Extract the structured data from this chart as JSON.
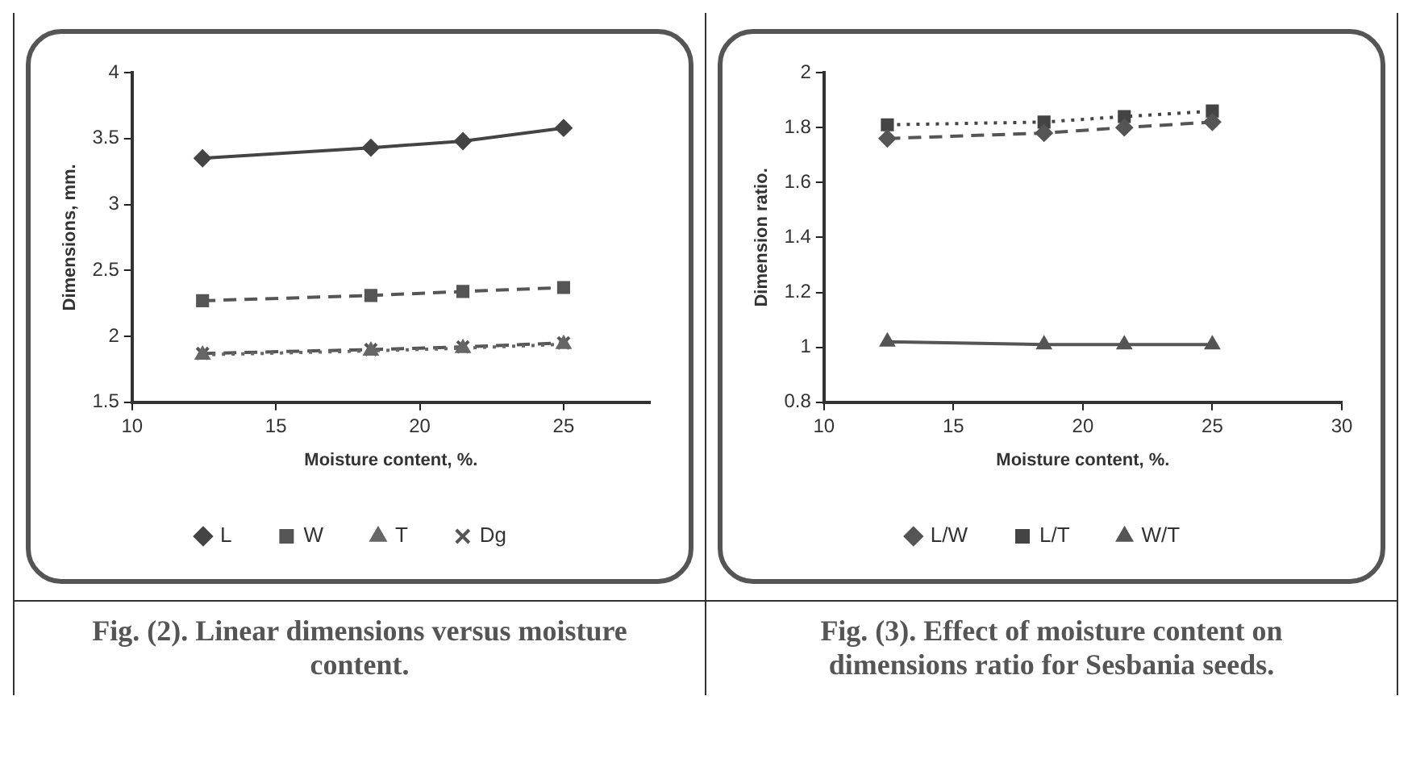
{
  "chart_data": [
    {
      "type": "line",
      "title": "Fig. (2). Linear dimensions versus moisture content.",
      "xlabel": "Moisture content, %.",
      "ylabel": "Dimensions, mm.",
      "x": [
        12.45,
        18.3,
        21.5,
        25
      ],
      "xlim": [
        10,
        28
      ],
      "xticks": [
        10,
        15,
        20,
        25
      ],
      "ylim": [
        1.5,
        4
      ],
      "yticks": [
        1.5,
        2,
        2.5,
        3,
        3.5,
        4
      ],
      "grid": false,
      "legend": "bottom",
      "series": [
        {
          "name": "L",
          "color": "#444444",
          "values": [
            3.35,
            3.43,
            3.48,
            3.58
          ],
          "marker": "diamond",
          "line_style": "solid"
        },
        {
          "name": "W",
          "color": "#555555",
          "values": [
            2.27,
            2.31,
            2.34,
            2.37
          ],
          "marker": "square",
          "line_style": "dashed"
        },
        {
          "name": "T",
          "color": "#666666",
          "values": [
            1.86,
            1.89,
            1.91,
            1.94
          ],
          "marker": "triangle",
          "line_style": "dotted"
        },
        {
          "name": "Dg",
          "color": "#555555",
          "values": [
            1.87,
            1.9,
            1.92,
            1.95
          ],
          "marker": "cross",
          "line_style": "dashed"
        }
      ]
    },
    {
      "type": "line",
      "title": "Fig. (3). Effect of moisture content on dimensions ratio for Sesbania seeds.",
      "xlabel": "Moisture content, %.",
      "ylabel": "Dimension ratio.",
      "x": [
        12.45,
        18.5,
        21.6,
        25
      ],
      "xlim": [
        10,
        30
      ],
      "xticks": [
        10,
        15,
        20,
        25,
        30
      ],
      "ylim": [
        0.8,
        2
      ],
      "yticks": [
        0.8,
        1,
        {
          "value": 1.2,
          "label": "1.2"
        },
        1.4,
        1.6,
        1.8,
        2
      ],
      "grid": false,
      "legend": "bottom",
      "series": [
        {
          "name": "L/W",
          "color": "#555555",
          "values": [
            1.76,
            1.78,
            1.8,
            1.82
          ],
          "marker": "diamond",
          "line_style": "dashed"
        },
        {
          "name": "L/T",
          "color": "#444444",
          "values": [
            1.81,
            1.82,
            1.84,
            1.86
          ],
          "marker": "square",
          "line_style": "dotted"
        },
        {
          "name": "W/T",
          "color": "#555555",
          "values": [
            1.02,
            1.01,
            1.01,
            1.01
          ],
          "marker": "triangle",
          "line_style": "solid"
        }
      ]
    }
  ]
}
